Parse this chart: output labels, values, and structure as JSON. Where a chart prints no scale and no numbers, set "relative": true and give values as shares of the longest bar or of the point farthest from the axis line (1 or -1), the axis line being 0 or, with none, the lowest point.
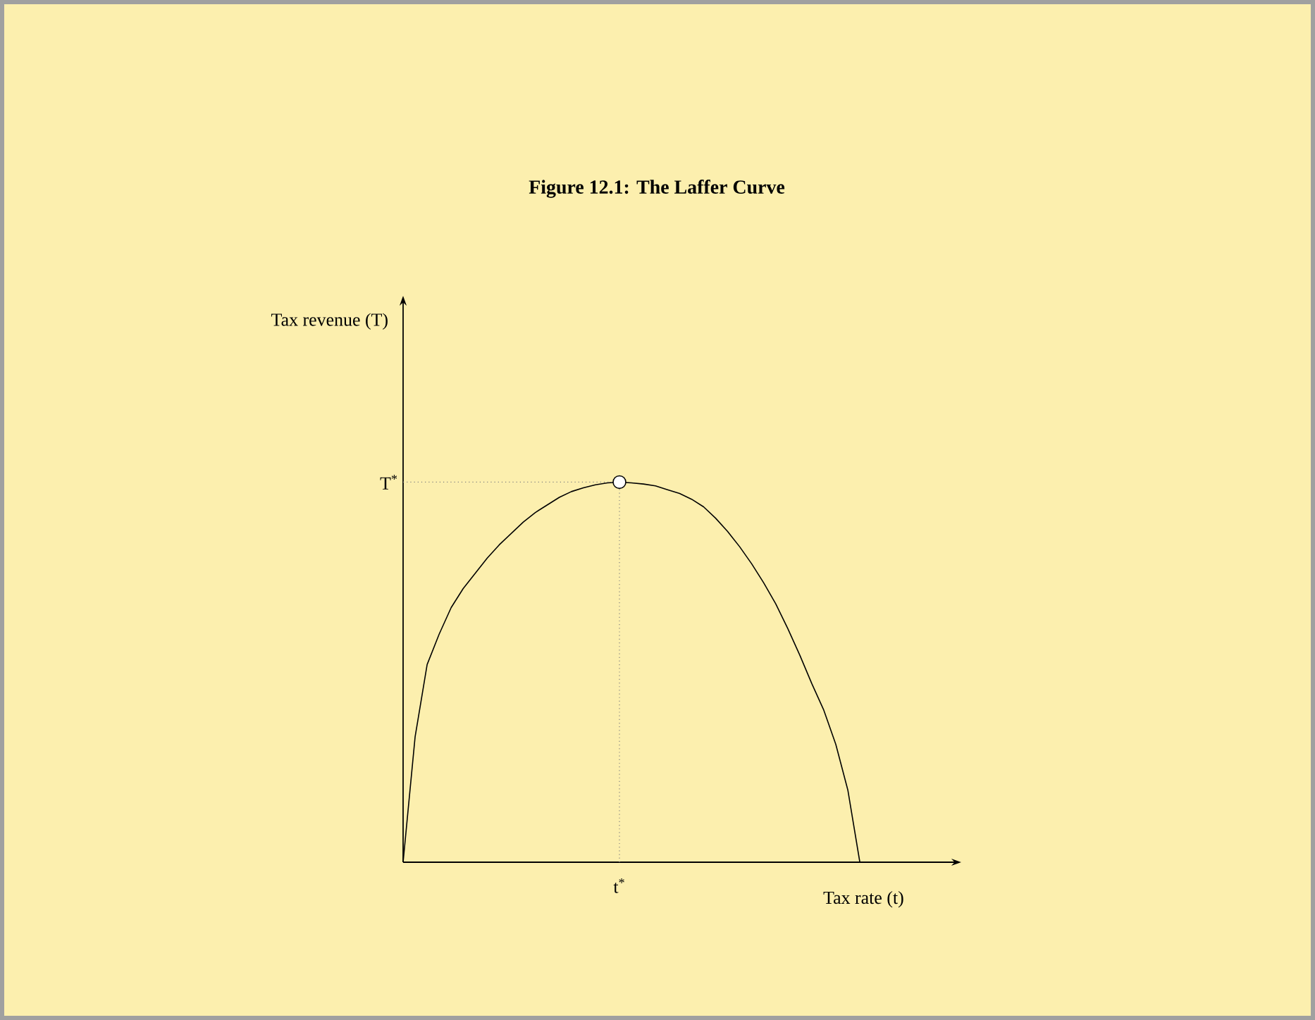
{
  "chart_data": {
    "type": "line",
    "title": "Figure 12.1: The Laffer Curve",
    "xlabel": "Tax rate (t)",
    "relative": true,
    "annotations": [
      "Tax revenue (T)",
      "t$^{*}$"
    ],
    "categories": [
      null,
      null,
      null,
      null,
      null,
      null,
      null,
      null,
      null,
      null,
      null,
      null,
      null,
      null,
      null,
      null,
      null,
      null,
      null,
      null,
      null,
      null,
      null,
      null,
      null,
      null,
      null,
      null,
      null,
      null,
      null,
      null,
      null,
      null,
      null,
      null,
      null,
      null,
      null
    ],
    "series": [
      {
        "color": "#000000",
        "values": [
          0,
          0.33,
          0.52,
          0.6,
          0.67,
          0.72,
          0.76,
          0.8,
          0.835,
          0.865,
          0.895,
          0.92,
          0.94,
          0.96,
          0.975,
          0.985,
          0.993,
          0.998,
          1,
          0.998,
          0.995,
          0.99,
          0.98,
          0.97,
          0.955,
          0.935,
          0.905,
          0.87,
          0.83,
          0.785,
          0.735,
          0.68,
          0.615,
          0.545,
          0.47,
          0.4,
          0.31,
          0.19,
          0
        ]
      }
    ],
    "ref_lines": [
      {
        "axis": "y",
        "value": 1,
        "label": "T$^{*}$",
        "color": "#808080",
        "line_style": "dotted"
      }
    ]
  }
}
